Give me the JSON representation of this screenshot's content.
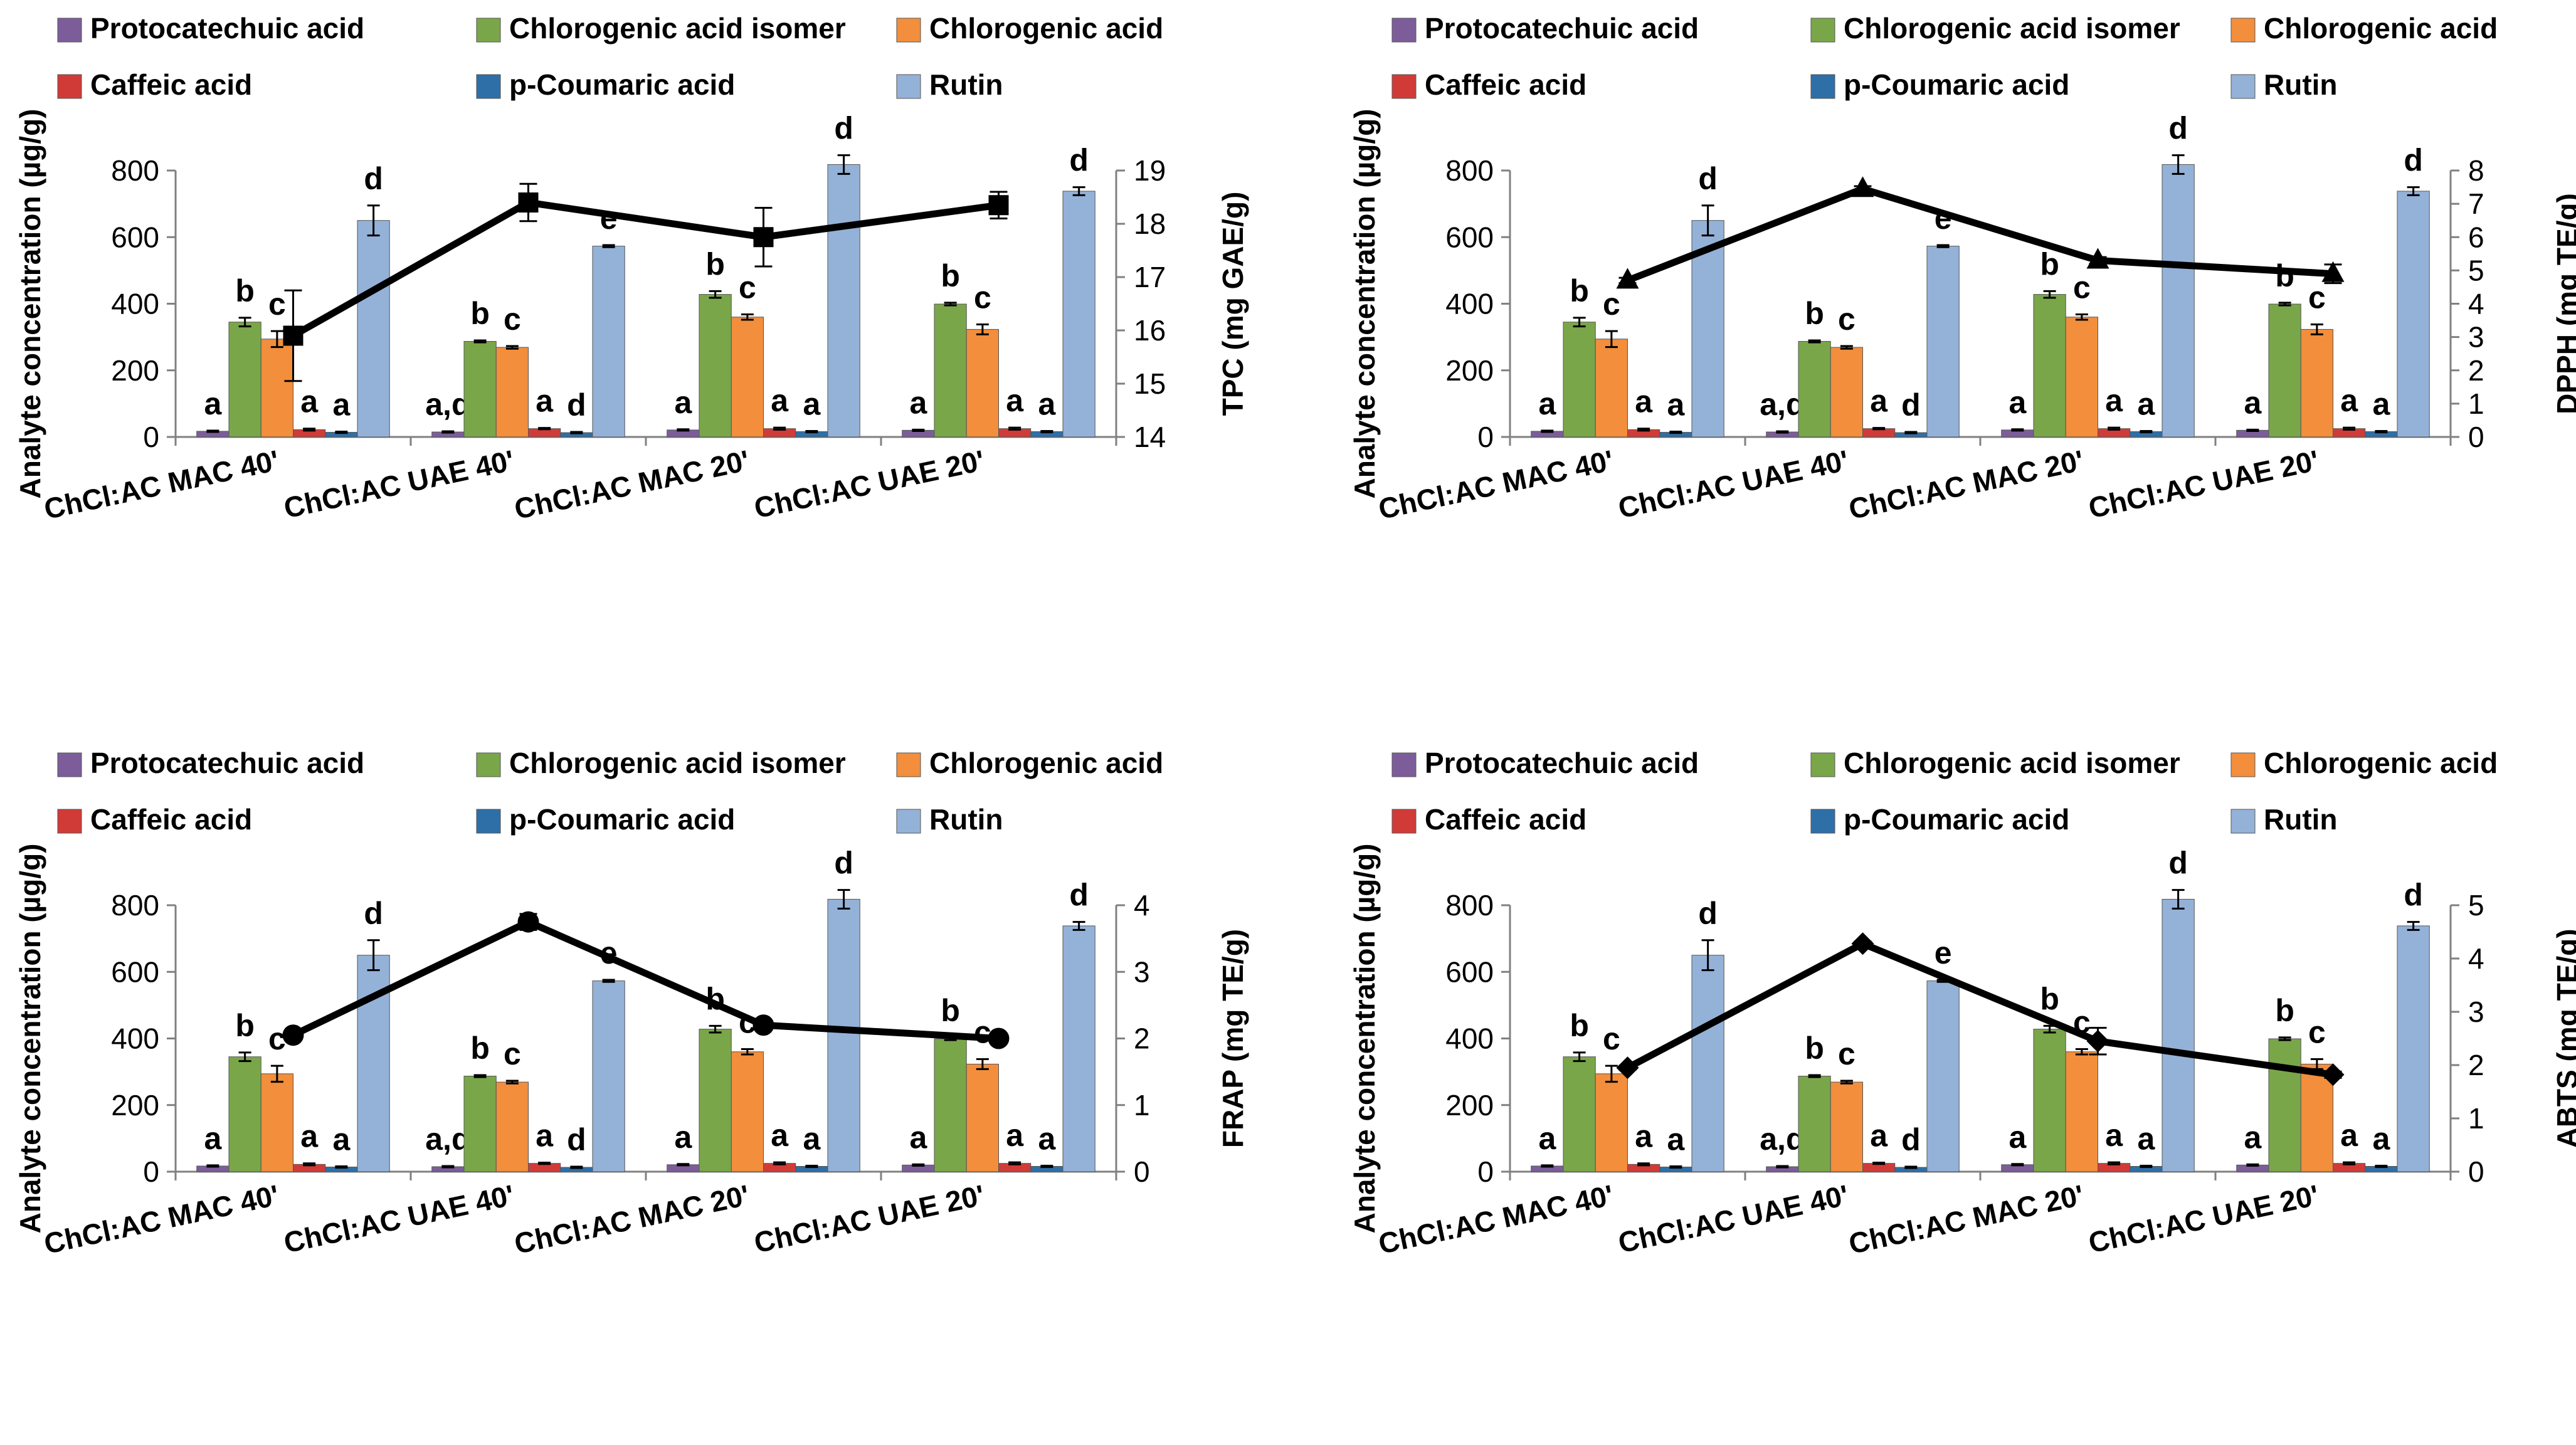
{
  "chart_data": [
    {
      "type": "bar",
      "title": "",
      "ylabel": "Analyte concentration (µg/g)",
      "y2label": "TPC (mg GAE/g)",
      "ylim": [
        0,
        800
      ],
      "yticks": [
        "0",
        "200",
        "400",
        "600",
        "800"
      ],
      "y2lim": [
        14,
        19
      ],
      "y2ticks": [
        "14",
        "15",
        "16",
        "17",
        "18",
        "19"
      ],
      "categories": [
        "ChCl:AC MAC 40'",
        "ChCl:AC UAE 40'",
        "ChCl:AC MAC 20'",
        "ChCl:AC UAE 20'"
      ],
      "series": [
        {
          "name": "Protocatechuic acid",
          "color": "#7c5d9a",
          "values": [
            17,
            15,
            21,
            20
          ],
          "errors": [
            2,
            2,
            2,
            2
          ],
          "letters": [
            "a",
            "a,d",
            "a",
            "a"
          ]
        },
        {
          "name": "Chlorogenic acid isomer",
          "color": "#7aa64a",
          "values": [
            345,
            287,
            428,
            399
          ],
          "errors": [
            13,
            3,
            10,
            4
          ],
          "letters": [
            "b",
            "b",
            "b",
            "b"
          ]
        },
        {
          "name": "Chlorogenic acid",
          "color": "#f28e3c",
          "values": [
            294,
            269,
            360,
            323
          ],
          "errors": [
            24,
            4,
            8,
            15
          ],
          "letters": [
            "c",
            "c",
            "c",
            "c"
          ]
        },
        {
          "name": "Caffeic acid",
          "color": "#d13b37",
          "values": [
            22,
            25,
            25,
            25
          ],
          "errors": [
            3,
            2,
            3,
            3
          ],
          "letters": [
            "a",
            "a",
            "a",
            "a"
          ]
        },
        {
          "name": "p-Coumaric acid",
          "color": "#2e6fa8",
          "values": [
            14,
            13,
            16,
            16
          ],
          "errors": [
            2,
            2,
            2,
            2
          ],
          "letters": [
            "a",
            "d",
            "a",
            "a"
          ]
        },
        {
          "name": "Rutin",
          "color": "#94b2d8",
          "values": [
            650,
            573,
            818,
            738
          ],
          "errors": [
            45,
            3,
            28,
            12
          ],
          "letters": [
            "d",
            "e",
            "d",
            "d"
          ]
        }
      ],
      "line": {
        "name": "TPC",
        "marker": "square",
        "values": [
          15.9,
          18.4,
          17.75,
          18.35
        ],
        "errors": [
          0.85,
          0.35,
          0.55,
          0.25
        ]
      }
    },
    {
      "type": "bar",
      "title": "",
      "ylabel": "Analyte concentration (µg/g)",
      "y2label": "DPPH (mg TE/g)",
      "ylim": [
        0,
        800
      ],
      "yticks": [
        "0",
        "200",
        "400",
        "600",
        "800"
      ],
      "y2lim": [
        0,
        8
      ],
      "y2ticks": [
        "0",
        "1",
        "2",
        "3",
        "4",
        "5",
        "6",
        "7",
        "8"
      ],
      "categories": [
        "ChCl:AC MAC 40'",
        "ChCl:AC UAE 40'",
        "ChCl:AC MAC 20'",
        "ChCl:AC UAE 20'"
      ],
      "series": [
        {
          "name": "Protocatechuic acid",
          "color": "#7c5d9a",
          "values": [
            17,
            15,
            21,
            20
          ],
          "errors": [
            2,
            2,
            2,
            2
          ],
          "letters": [
            "a",
            "a,d",
            "a",
            "a"
          ]
        },
        {
          "name": "Chlorogenic acid isomer",
          "color": "#7aa64a",
          "values": [
            345,
            287,
            428,
            399
          ],
          "errors": [
            13,
            3,
            10,
            4
          ],
          "letters": [
            "b",
            "b",
            "b",
            "b"
          ]
        },
        {
          "name": "Chlorogenic acid",
          "color": "#f28e3c",
          "values": [
            294,
            269,
            360,
            323
          ],
          "errors": [
            24,
            4,
            8,
            15
          ],
          "letters": [
            "c",
            "c",
            "c",
            "c"
          ]
        },
        {
          "name": "Caffeic acid",
          "color": "#d13b37",
          "values": [
            22,
            25,
            25,
            25
          ],
          "errors": [
            3,
            2,
            3,
            3
          ],
          "letters": [
            "a",
            "a",
            "a",
            "a"
          ]
        },
        {
          "name": "p-Coumaric acid",
          "color": "#2e6fa8",
          "values": [
            14,
            13,
            16,
            16
          ],
          "errors": [
            2,
            2,
            2,
            2
          ],
          "letters": [
            "a",
            "d",
            "a",
            "a"
          ]
        },
        {
          "name": "Rutin",
          "color": "#94b2d8",
          "values": [
            650,
            573,
            818,
            738
          ],
          "errors": [
            45,
            3,
            28,
            12
          ],
          "letters": [
            "d",
            "e",
            "d",
            "d"
          ]
        }
      ],
      "line": {
        "name": "DPPH",
        "marker": "triangle",
        "values": [
          4.7,
          7.45,
          5.3,
          4.9
        ],
        "errors": [
          0.08,
          0.08,
          0.1,
          0.28
        ]
      }
    },
    {
      "type": "bar",
      "title": "",
      "ylabel": "Analyte concentration (µg/g)",
      "y2label": "FRAP (mg TE/g)",
      "ylim": [
        0,
        800
      ],
      "yticks": [
        "0",
        "200",
        "400",
        "600",
        "800"
      ],
      "y2lim": [
        0,
        4
      ],
      "y2ticks": [
        "0",
        "1",
        "2",
        "3",
        "4"
      ],
      "categories": [
        "ChCl:AC MAC 40'",
        "ChCl:AC UAE 40'",
        "ChCl:AC MAC 20'",
        "ChCl:AC UAE 20'"
      ],
      "series": [
        {
          "name": "Protocatechuic acid",
          "color": "#7c5d9a",
          "values": [
            17,
            15,
            21,
            20
          ],
          "errors": [
            2,
            2,
            2,
            2
          ],
          "letters": [
            "a",
            "a,d",
            "a",
            "a"
          ]
        },
        {
          "name": "Chlorogenic acid isomer",
          "color": "#7aa64a",
          "values": [
            345,
            287,
            428,
            399
          ],
          "errors": [
            13,
            3,
            10,
            4
          ],
          "letters": [
            "b",
            "b",
            "b",
            "b"
          ]
        },
        {
          "name": "Chlorogenic acid",
          "color": "#f28e3c",
          "values": [
            294,
            269,
            360,
            323
          ],
          "errors": [
            24,
            4,
            8,
            15
          ],
          "letters": [
            "c",
            "c",
            "c",
            "c"
          ]
        },
        {
          "name": "Caffeic acid",
          "color": "#d13b37",
          "values": [
            22,
            25,
            25,
            25
          ],
          "errors": [
            3,
            2,
            3,
            3
          ],
          "letters": [
            "a",
            "a",
            "a",
            "a"
          ]
        },
        {
          "name": "p-Coumaric acid",
          "color": "#2e6fa8",
          "values": [
            14,
            13,
            16,
            16
          ],
          "errors": [
            2,
            2,
            2,
            2
          ],
          "letters": [
            "a",
            "d",
            "a",
            "a"
          ]
        },
        {
          "name": "Rutin",
          "color": "#94b2d8",
          "values": [
            650,
            573,
            818,
            738
          ],
          "errors": [
            45,
            3,
            28,
            12
          ],
          "letters": [
            "d",
            "e",
            "d",
            "d"
          ]
        }
      ],
      "line": {
        "name": "FRAP",
        "marker": "circle",
        "values": [
          2.05,
          3.75,
          2.2,
          2.0
        ],
        "errors": [
          0.04,
          0.12,
          0.04,
          0.04
        ]
      }
    },
    {
      "type": "bar",
      "title": "",
      "ylabel": "Analyte concentration (µg/g)",
      "y2label": "ABTS (mg TE/g)",
      "ylim": [
        0,
        800
      ],
      "yticks": [
        "0",
        "200",
        "400",
        "600",
        "800"
      ],
      "y2lim": [
        0,
        5
      ],
      "y2ticks": [
        "0",
        "1",
        "2",
        "3",
        "4",
        "5"
      ],
      "categories": [
        "ChCl:AC MAC 40'",
        "ChCl:AC UAE 40'",
        "ChCl:AC MAC 20'",
        "ChCl:AC UAE 20'"
      ],
      "series": [
        {
          "name": "Protocatechuic acid",
          "color": "#7c5d9a",
          "values": [
            17,
            15,
            21,
            20
          ],
          "errors": [
            2,
            2,
            2,
            2
          ],
          "letters": [
            "a",
            "a,d",
            "a",
            "a"
          ]
        },
        {
          "name": "Chlorogenic acid isomer",
          "color": "#7aa64a",
          "values": [
            345,
            287,
            428,
            399
          ],
          "errors": [
            13,
            3,
            10,
            4
          ],
          "letters": [
            "b",
            "b",
            "b",
            "b"
          ]
        },
        {
          "name": "Chlorogenic acid",
          "color": "#f28e3c",
          "values": [
            294,
            269,
            360,
            323
          ],
          "errors": [
            24,
            4,
            8,
            15
          ],
          "letters": [
            "c",
            "c",
            "c",
            "c"
          ]
        },
        {
          "name": "Caffeic acid",
          "color": "#d13b37",
          "values": [
            22,
            25,
            25,
            25
          ],
          "errors": [
            3,
            2,
            3,
            3
          ],
          "letters": [
            "a",
            "a",
            "a",
            "a"
          ]
        },
        {
          "name": "p-Coumaric acid",
          "color": "#2e6fa8",
          "values": [
            14,
            13,
            16,
            16
          ],
          "errors": [
            2,
            2,
            2,
            2
          ],
          "letters": [
            "a",
            "d",
            "a",
            "a"
          ]
        },
        {
          "name": "Rutin",
          "color": "#94b2d8",
          "values": [
            650,
            573,
            818,
            738
          ],
          "errors": [
            45,
            3,
            28,
            12
          ],
          "letters": [
            "d",
            "e",
            "d",
            "d"
          ]
        }
      ],
      "line": {
        "name": "ABTS",
        "marker": "diamond",
        "values": [
          1.95,
          4.28,
          2.45,
          1.82
        ],
        "errors": [
          0.04,
          0.04,
          0.25,
          0.06
        ]
      }
    }
  ]
}
